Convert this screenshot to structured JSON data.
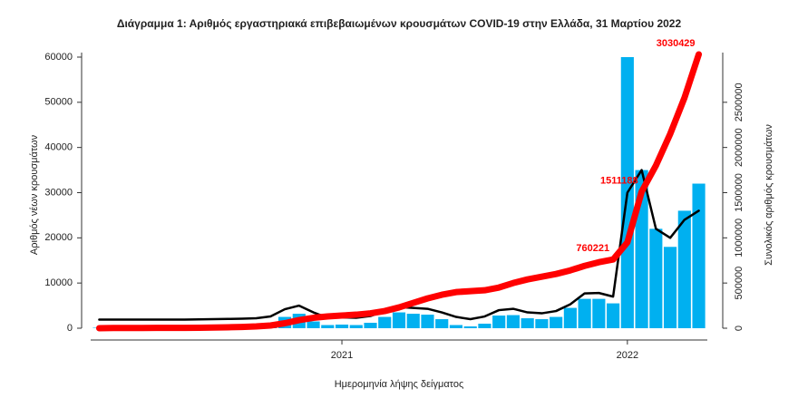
{
  "chart_data": {
    "type": "combo",
    "title": "Διάγραμμα 1: Αριθμός εργαστηριακά επιβεβαιωμένων κρουσμάτων COVID-19 στην Ελλάδα, 31 Μαρτίου 2022",
    "x_label": "Ημερομηνία λήψης δείγματος",
    "y_label": "Αριθμός νέων κρουσμάτων",
    "y2_label": "Συνολικός αριθμός κρουσμάτων",
    "x": [
      2020.15,
      2020.2,
      2020.25,
      2020.3,
      2020.35,
      2020.4,
      2020.45,
      2020.5,
      2020.55,
      2020.6,
      2020.65,
      2020.7,
      2020.75,
      2020.8,
      2020.85,
      2020.9,
      2020.95,
      2021.0,
      2021.05,
      2021.1,
      2021.15,
      2021.2,
      2021.25,
      2021.3,
      2021.35,
      2021.4,
      2021.45,
      2021.5,
      2021.55,
      2021.6,
      2021.65,
      2021.7,
      2021.75,
      2021.8,
      2021.85,
      2021.9,
      2021.95,
      2022.0,
      2022.05,
      2022.1,
      2022.15,
      2022.2,
      2022.25
    ],
    "xlim": [
      2020.12,
      2022.28
    ],
    "xticks": [
      2021,
      2022
    ],
    "ylim": [
      0,
      61000
    ],
    "yticks": [
      0,
      10000,
      20000,
      30000,
      40000,
      50000,
      60000
    ],
    "y2lim": [
      0,
      3050000
    ],
    "y2ticks": [
      0,
      500000,
      1000000,
      1500000,
      2000000,
      2500000
    ],
    "series": [
      {
        "type": "bar",
        "color": "#00b0f0",
        "values": [
          100,
          150,
          50,
          20,
          20,
          20,
          50,
          100,
          200,
          250,
          300,
          400,
          1000,
          2500,
          3200,
          1500,
          700,
          800,
          700,
          1200,
          2500,
          3500,
          3200,
          3000,
          2000,
          700,
          400,
          1000,
          2800,
          2900,
          2200,
          2000,
          2500,
          4500,
          6500,
          6500,
          5500,
          60000,
          35000,
          22000,
          18000,
          26000,
          32000
        ]
      },
      {
        "type": "line",
        "color": "#000000",
        "values": [
          1900,
          1900,
          1900,
          1900,
          1900,
          1900,
          1900,
          1950,
          2000,
          2050,
          2100,
          2200,
          2600,
          4200,
          5000,
          3500,
          2300,
          2400,
          2300,
          2700,
          3800,
          4700,
          4500,
          4300,
          3500,
          2500,
          2000,
          2600,
          4000,
          4300,
          3500,
          3300,
          3800,
          5300,
          7700,
          7800,
          7000,
          30000,
          35000,
          22000,
          20000,
          24000,
          26000
        ]
      },
      {
        "type": "line",
        "axis": "y2",
        "color": "#ff0000",
        "values": [
          0,
          2000,
          2700,
          3000,
          3200,
          3400,
          3800,
          4800,
          7000,
          10000,
          14000,
          20000,
          30000,
          55000,
          90000,
          115000,
          130000,
          140000,
          150000,
          165000,
          190000,
          230000,
          280000,
          330000,
          370000,
          400000,
          410000,
          420000,
          450000,
          500000,
          540000,
          570000,
          600000,
          640000,
          690000,
          730000,
          760221,
          950000,
          1511188,
          1800000,
          2150000,
          2550000,
          3030429
        ]
      }
    ],
    "annotations": [
      {
        "x": 2021.95,
        "value": 760221
      },
      {
        "x": 2022.05,
        "value": 1511188
      },
      {
        "x": 2022.25,
        "value": 3030429
      }
    ]
  }
}
